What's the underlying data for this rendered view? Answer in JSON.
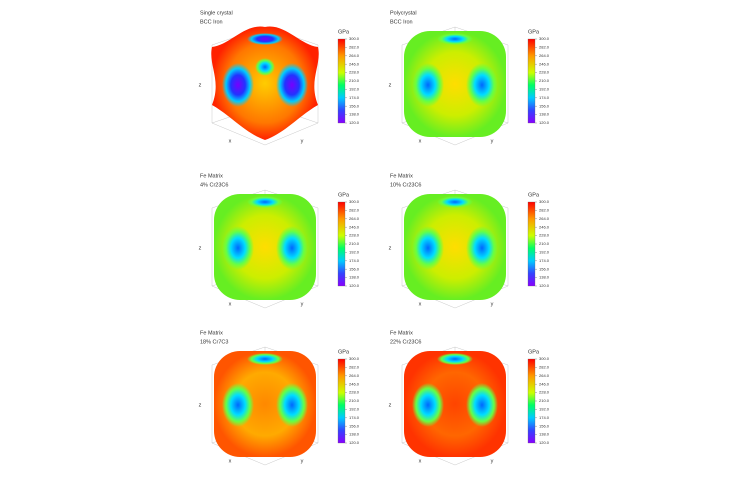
{
  "chart_data": [
    {
      "type": "surface",
      "title": [
        "Single crystal",
        "BCC Iron"
      ],
      "colorbar_label": "GPa",
      "clim": [
        120,
        300
      ],
      "cticks": [
        {
          "value": 300,
          "label": "300.0"
        },
        {
          "value": 282,
          "label": "282.0"
        },
        {
          "value": 264,
          "label": "264.0"
        },
        {
          "value": 246,
          "label": "246.0"
        },
        {
          "value": 228,
          "label": "228.0"
        },
        {
          "value": 210,
          "label": "210.0"
        },
        {
          "value": 192,
          "label": "192.0"
        },
        {
          "value": 174,
          "label": "174.0"
        },
        {
          "value": 156,
          "label": "156.0"
        },
        {
          "value": 138,
          "label": "138.0"
        },
        {
          "value": 120,
          "label": "120.0"
        }
      ],
      "axis_labels": [
        "x",
        "y",
        "z"
      ]
    },
    {
      "type": "surface",
      "title": [
        "Polycrystal",
        "BCC Iron"
      ],
      "colorbar_label": "GPa",
      "clim": [
        120,
        300
      ],
      "cticks": [
        {
          "value": 300,
          "label": "300.0"
        },
        {
          "value": 282,
          "label": "282.0"
        },
        {
          "value": 264,
          "label": "264.0"
        },
        {
          "value": 246,
          "label": "246.0"
        },
        {
          "value": 228,
          "label": "228.0"
        },
        {
          "value": 210,
          "label": "210.0"
        },
        {
          "value": 192,
          "label": "192.0"
        },
        {
          "value": 174,
          "label": "174.0"
        },
        {
          "value": 156,
          "label": "156.0"
        },
        {
          "value": 138,
          "label": "138.0"
        },
        {
          "value": 120,
          "label": "120.0"
        }
      ],
      "axis_labels": [
        "x",
        "y",
        "z"
      ]
    },
    {
      "type": "surface",
      "title": [
        "Fe Matrix",
        "4% Cr23C6"
      ],
      "colorbar_label": "GPa",
      "clim": [
        120,
        300
      ],
      "cticks": [
        {
          "value": 300,
          "label": "300.0"
        },
        {
          "value": 282,
          "label": "282.0"
        },
        {
          "value": 264,
          "label": "264.0"
        },
        {
          "value": 246,
          "label": "246.0"
        },
        {
          "value": 228,
          "label": "228.0"
        },
        {
          "value": 210,
          "label": "210.0"
        },
        {
          "value": 192,
          "label": "192.0"
        },
        {
          "value": 174,
          "label": "174.0"
        },
        {
          "value": 156,
          "label": "156.0"
        },
        {
          "value": 138,
          "label": "138.0"
        },
        {
          "value": 120,
          "label": "120.0"
        }
      ],
      "axis_labels": [
        "x",
        "y",
        "z"
      ]
    },
    {
      "type": "surface",
      "title": [
        "Fe Matrix",
        "10% Cr23C6"
      ],
      "colorbar_label": "GPa",
      "clim": [
        120,
        300
      ],
      "cticks": [
        {
          "value": 300,
          "label": "300.0"
        },
        {
          "value": 282,
          "label": "282.0"
        },
        {
          "value": 264,
          "label": "264.0"
        },
        {
          "value": 246,
          "label": "246.0"
        },
        {
          "value": 228,
          "label": "228.0"
        },
        {
          "value": 210,
          "label": "210.0"
        },
        {
          "value": 192,
          "label": "192.0"
        },
        {
          "value": 174,
          "label": "174.0"
        },
        {
          "value": 156,
          "label": "156.0"
        },
        {
          "value": 138,
          "label": "138.0"
        },
        {
          "value": 120,
          "label": "120.0"
        }
      ],
      "axis_labels": [
        "x",
        "y",
        "z"
      ]
    },
    {
      "type": "surface",
      "title": [
        "Fe Matrix",
        "18% Cr7C3"
      ],
      "colorbar_label": "GPa",
      "clim": [
        120,
        300
      ],
      "cticks": [
        {
          "value": 300,
          "label": "300.0"
        },
        {
          "value": 282,
          "label": "282.0"
        },
        {
          "value": 264,
          "label": "264.0"
        },
        {
          "value": 246,
          "label": "246.0"
        },
        {
          "value": 228,
          "label": "228.0"
        },
        {
          "value": 210,
          "label": "210.0"
        },
        {
          "value": 192,
          "label": "192.0"
        },
        {
          "value": 174,
          "label": "174.0"
        },
        {
          "value": 156,
          "label": "156.0"
        },
        {
          "value": 138,
          "label": "138.0"
        },
        {
          "value": 120,
          "label": "120.0"
        }
      ],
      "axis_labels": [
        "x",
        "y",
        "z"
      ]
    },
    {
      "type": "surface",
      "title": [
        "Fe Matrix",
        "22% Cr23C6"
      ],
      "colorbar_label": "GPa",
      "clim": [
        120,
        300
      ],
      "cticks": [
        {
          "value": 300,
          "label": "300.0"
        },
        {
          "value": 282,
          "label": "282.0"
        },
        {
          "value": 264,
          "label": "264.0"
        },
        {
          "value": 246,
          "label": "246.0"
        },
        {
          "value": 228,
          "label": "228.0"
        },
        {
          "value": 210,
          "label": "210.0"
        },
        {
          "value": 192,
          "label": "192.0"
        },
        {
          "value": 174,
          "label": "174.0"
        },
        {
          "value": 156,
          "label": "156.0"
        },
        {
          "value": 138,
          "label": "138.0"
        },
        {
          "value": 120,
          "label": "120.0"
        }
      ],
      "axis_labels": [
        "x",
        "y",
        "z"
      ]
    }
  ]
}
